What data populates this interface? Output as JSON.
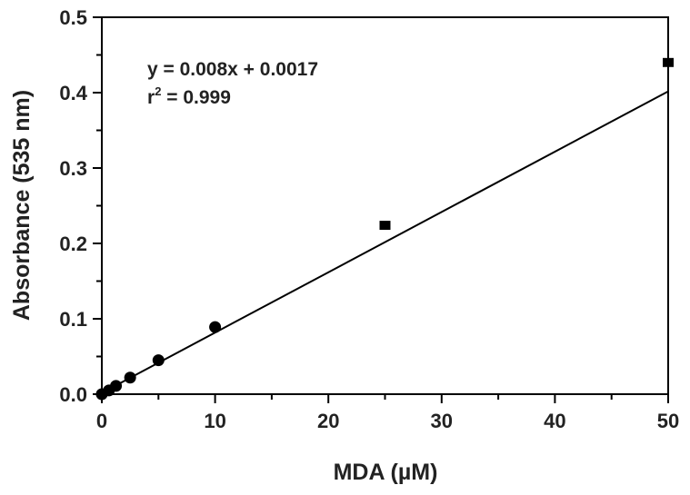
{
  "chart_data": {
    "type": "scatter",
    "title": "",
    "xlabel": "MDA (µM)",
    "ylabel": "Absorbance (535 nm)",
    "xlim": [
      0,
      50
    ],
    "ylim": [
      0,
      0.5
    ],
    "xticks": [
      "0",
      "10",
      "20",
      "30",
      "40",
      "50"
    ],
    "yticks": [
      "0.0",
      "0.1",
      "0.2",
      "0.3",
      "0.4",
      "0.5"
    ],
    "grid": false,
    "annotation": {
      "equation": "y = 0.008x + 0.0017",
      "r2_prefix": "r",
      "r2_sup": "2",
      "r2_value": " = 0.999"
    },
    "points": [
      {
        "x": 0,
        "y": 0.0,
        "err": 0
      },
      {
        "x": 0.625,
        "y": 0.005,
        "err": 0
      },
      {
        "x": 1.25,
        "y": 0.011,
        "err": 0
      },
      {
        "x": 2.5,
        "y": 0.022,
        "err": 0
      },
      {
        "x": 5,
        "y": 0.045,
        "err": 0
      },
      {
        "x": 10,
        "y": 0.089,
        "err": 0
      },
      {
        "x": 25,
        "y": 0.224,
        "err": 0.006
      },
      {
        "x": 50,
        "y": 0.44,
        "err": 0.006
      }
    ],
    "fit": {
      "slope": 0.008,
      "intercept": 0.0017
    },
    "colors": {
      "marks": "#000000",
      "text": "#222222"
    }
  }
}
